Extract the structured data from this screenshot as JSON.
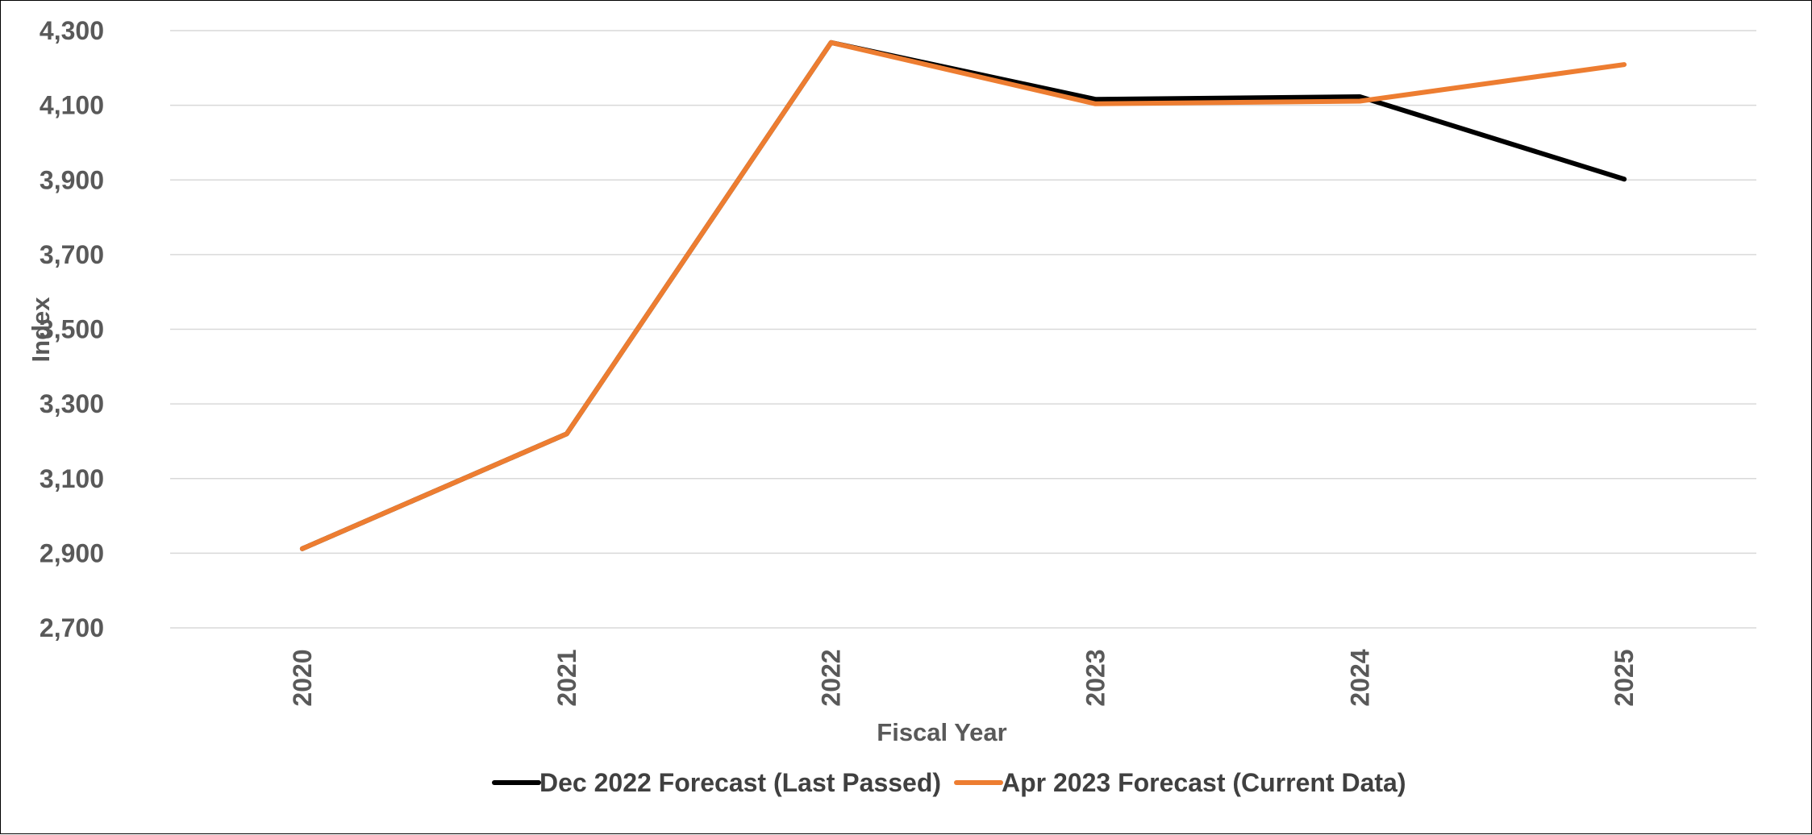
{
  "chart_data": {
    "type": "line",
    "title": "",
    "xlabel": "Fiscal Year",
    "ylabel": "Index",
    "categories": [
      "2020",
      "2021",
      "2022",
      "2023",
      "2024",
      "2025"
    ],
    "ylim": [
      2700,
      4300
    ],
    "yticks": [
      2700,
      2900,
      3100,
      3300,
      3500,
      3700,
      3900,
      4100,
      4300
    ],
    "ytick_labels": [
      "2,700",
      "2,900",
      "3,100",
      "3,300",
      "3,500",
      "3,700",
      "3,900",
      "4,100",
      "4,300"
    ],
    "grid": "horizontal",
    "legend_position": "bottom",
    "series": [
      {
        "name": "Dec 2022 Forecast (Last Passed)",
        "color": "#000000",
        "values": [
          2912,
          3220,
          4268,
          4116,
          4123,
          3902
        ]
      },
      {
        "name": "Apr 2023  Forecast (Current Data)",
        "color": "#ED7D31",
        "values": [
          2912,
          3220,
          4268,
          4104,
          4111,
          4209
        ]
      }
    ]
  }
}
